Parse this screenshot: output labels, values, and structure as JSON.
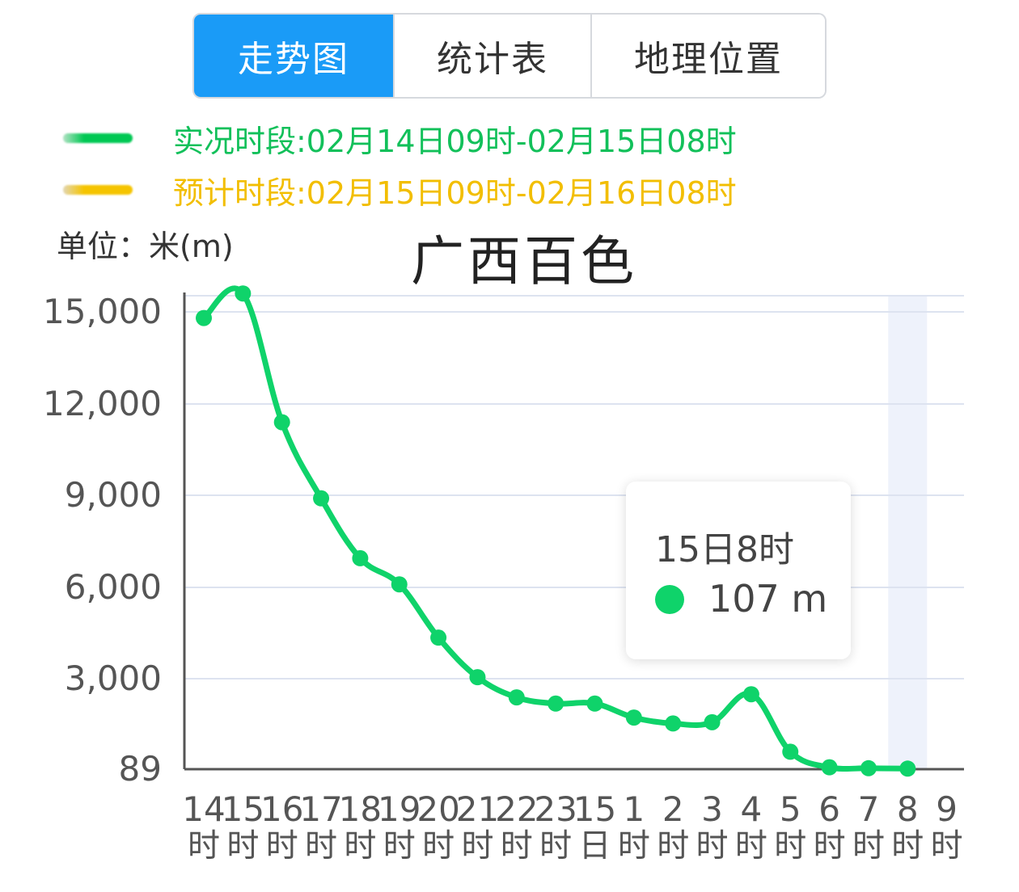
{
  "tabs": [
    {
      "label": "走势图",
      "active": true
    },
    {
      "label": "统计表",
      "active": false
    },
    {
      "label": "地理位置",
      "active": false
    }
  ],
  "legend": {
    "observed": {
      "label": "实况时段:02月14日09时-02月15日08时",
      "color": "#12c05a"
    },
    "forecast": {
      "label": "预计时段:02月15日09时-02月16日08时",
      "color": "#f2be00"
    }
  },
  "unit_label": "单位：米(m)",
  "tooltip": {
    "time": "15日8时",
    "value": "107 m"
  },
  "chart_data": {
    "type": "line",
    "title": "广西百色",
    "ylabel": "单位：米(m)",
    "y_ticks": [
      "89",
      "3,000",
      "6,000",
      "9,000",
      "12,000",
      "15,000"
    ],
    "ylim": [
      89,
      15600
    ],
    "x_labels": [
      [
        "14",
        "时"
      ],
      [
        "15",
        "时"
      ],
      [
        "16",
        "时"
      ],
      [
        "17",
        "时"
      ],
      [
        "18",
        "时"
      ],
      [
        "19",
        "时"
      ],
      [
        "20",
        "时"
      ],
      [
        "21",
        "时"
      ],
      [
        "22",
        "时"
      ],
      [
        "23",
        "时"
      ],
      [
        "15",
        "日"
      ],
      [
        "1",
        "时"
      ],
      [
        "2",
        "时"
      ],
      [
        "3",
        "时"
      ],
      [
        "4",
        "时"
      ],
      [
        "5",
        "时"
      ],
      [
        "6",
        "时"
      ],
      [
        "7",
        "时"
      ],
      [
        "8",
        "时"
      ],
      [
        "9",
        "时"
      ]
    ],
    "series": [
      {
        "color": "#0fd36a",
        "values": [
          14800,
          15600,
          11400,
          8900,
          6950,
          6100,
          4350,
          3050,
          2400,
          2200,
          2200,
          1750,
          1560,
          1600,
          2500,
          650,
          150,
          120,
          107
        ]
      }
    ],
    "highlight_index": 18,
    "grid": true
  }
}
